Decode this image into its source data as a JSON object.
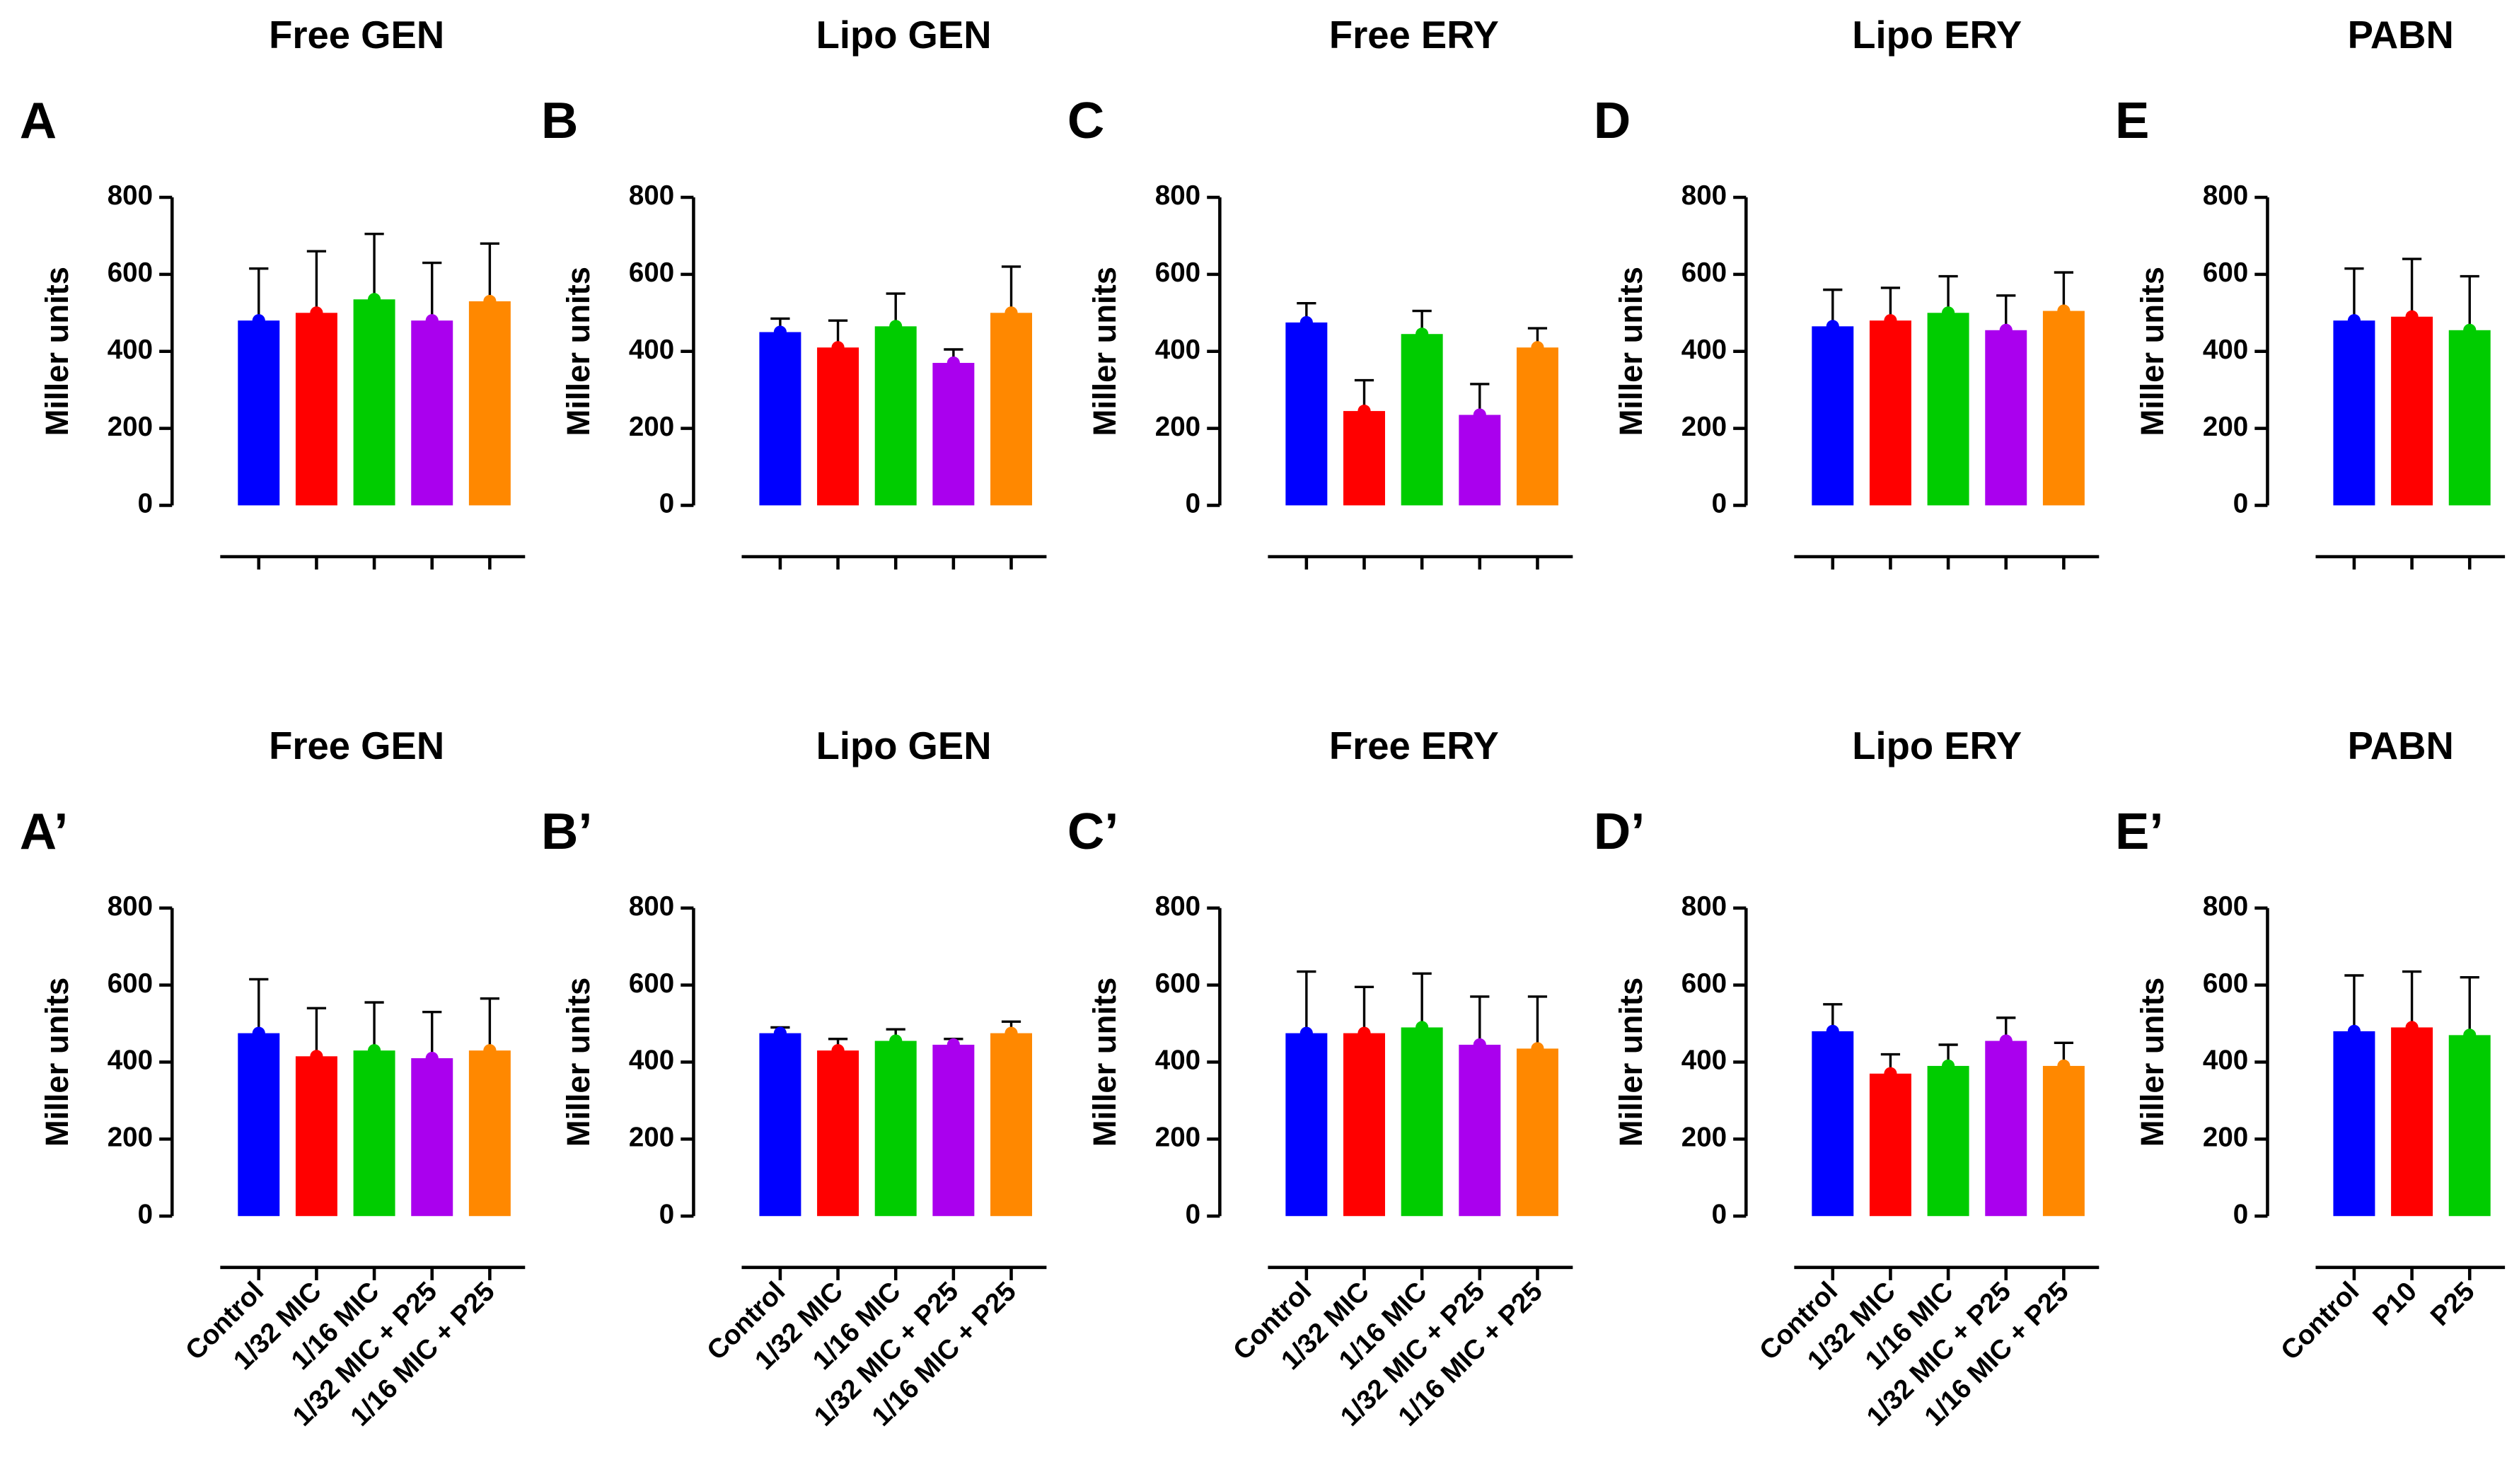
{
  "chart_data": [
    {
      "type": "bar",
      "title": "Free GEN",
      "label": "A",
      "ylabel": "Miller units",
      "categories": [
        null,
        null,
        null,
        null,
        null
      ],
      "values": [
        480,
        500,
        535,
        480,
        530
      ],
      "errors": [
        135,
        160,
        170,
        150,
        150
      ],
      "colors": [
        "#0000ff",
        "#ff0000",
        "#00cc00",
        "#aa00ee",
        "#ff8800"
      ],
      "ylim": [
        0,
        800
      ],
      "yticks": [
        0,
        200,
        400,
        600,
        800
      ]
    },
    {
      "type": "bar",
      "title": "Lipo GEN",
      "label": "B",
      "ylabel": "Miller units",
      "categories": [
        null,
        null,
        null,
        null,
        null
      ],
      "values": [
        450,
        410,
        465,
        370,
        500
      ],
      "errors": [
        35,
        70,
        85,
        35,
        120
      ],
      "colors": [
        "#0000ff",
        "#ff0000",
        "#00cc00",
        "#aa00ee",
        "#ff8800"
      ],
      "ylim": [
        0,
        800
      ],
      "yticks": [
        0,
        200,
        400,
        600,
        800
      ]
    },
    {
      "type": "bar",
      "title": "Free ERY",
      "label": "C",
      "ylabel": "Miller units",
      "categories": [
        null,
        null,
        null,
        null,
        null
      ],
      "values": [
        475,
        245,
        445,
        235,
        410
      ],
      "errors": [
        50,
        80,
        60,
        80,
        50
      ],
      "colors": [
        "#0000ff",
        "#ff0000",
        "#00cc00",
        "#aa00ee",
        "#ff8800"
      ],
      "ylim": [
        0,
        800
      ],
      "yticks": [
        0,
        200,
        400,
        600,
        800
      ]
    },
    {
      "type": "bar",
      "title": "Lipo ERY",
      "label": "D",
      "ylabel": "Miller units",
      "categories": [
        null,
        null,
        null,
        null,
        null
      ],
      "values": [
        465,
        480,
        500,
        455,
        505
      ],
      "errors": [
        95,
        85,
        95,
        90,
        100
      ],
      "colors": [
        "#0000ff",
        "#ff0000",
        "#00cc00",
        "#aa00ee",
        "#ff8800"
      ],
      "ylim": [
        0,
        800
      ],
      "yticks": [
        0,
        200,
        400,
        600,
        800
      ]
    },
    {
      "type": "bar",
      "title": "PABN",
      "label": "E",
      "ylabel": "Miller units",
      "categories": [
        null,
        null,
        null
      ],
      "values": [
        480,
        490,
        455
      ],
      "errors": [
        135,
        150,
        140
      ],
      "colors": [
        "#0000ff",
        "#ff0000",
        "#00cc00"
      ],
      "ylim": [
        0,
        800
      ],
      "yticks": [
        0,
        200,
        400,
        600,
        800
      ]
    },
    {
      "type": "bar",
      "title": "Free GEN",
      "label": "A’",
      "ylabel": "Miller units",
      "categories": [
        "Control",
        "1/32 MIC",
        "1/16 MIC",
        "1/32 MIC + P25",
        "1/16 MIC + P25"
      ],
      "values": [
        475,
        415,
        430,
        410,
        430
      ],
      "errors": [
        140,
        125,
        125,
        120,
        135
      ],
      "colors": [
        "#0000ff",
        "#ff0000",
        "#00cc00",
        "#aa00ee",
        "#ff8800"
      ],
      "ylim": [
        0,
        800
      ],
      "yticks": [
        0,
        200,
        400,
        600,
        800
      ]
    },
    {
      "type": "bar",
      "title": "Lipo GEN",
      "label": "B’",
      "ylabel": "Miller units",
      "categories": [
        "Control",
        "1/32 MIC",
        "1/16 MIC",
        "1/32 MIC + P25",
        "1/16 MIC + P25"
      ],
      "values": [
        475,
        430,
        455,
        445,
        475
      ],
      "errors": [
        15,
        30,
        30,
        15,
        30
      ],
      "colors": [
        "#0000ff",
        "#ff0000",
        "#00cc00",
        "#aa00ee",
        "#ff8800"
      ],
      "ylim": [
        0,
        800
      ],
      "yticks": [
        0,
        200,
        400,
        600,
        800
      ]
    },
    {
      "type": "bar",
      "title": "Free ERY",
      "label": "C’",
      "ylabel": "Miller units",
      "categories": [
        "Control",
        "1/32 MIC",
        "1/16 MIC",
        "1/32 MIC + P25",
        "1/16 MIC + P25"
      ],
      "values": [
        475,
        475,
        490,
        445,
        435
      ],
      "errors": [
        160,
        120,
        140,
        125,
        135
      ],
      "colors": [
        "#0000ff",
        "#ff0000",
        "#00cc00",
        "#aa00ee",
        "#ff8800"
      ],
      "ylim": [
        0,
        800
      ],
      "yticks": [
        0,
        200,
        400,
        600,
        800
      ]
    },
    {
      "type": "bar",
      "title": "Lipo ERY",
      "label": "D’",
      "ylabel": "Miller units",
      "categories": [
        "Control",
        "1/32 MIC",
        "1/16 MIC",
        "1/32 MIC + P25",
        "1/16 MIC + P25"
      ],
      "values": [
        480,
        370,
        390,
        455,
        390
      ],
      "errors": [
        70,
        50,
        55,
        60,
        60
      ],
      "colors": [
        "#0000ff",
        "#ff0000",
        "#00cc00",
        "#aa00ee",
        "#ff8800"
      ],
      "ylim": [
        0,
        800
      ],
      "yticks": [
        0,
        200,
        400,
        600,
        800
      ]
    },
    {
      "type": "bar",
      "title": "PABN",
      "label": "E’",
      "ylabel": "Miller units",
      "categories": [
        "Control",
        "P10",
        "P25"
      ],
      "values": [
        480,
        490,
        470
      ],
      "errors": [
        145,
        145,
        150
      ],
      "colors": [
        "#0000ff",
        "#ff0000",
        "#00cc00"
      ],
      "ylim": [
        0,
        800
      ],
      "yticks": [
        0,
        200,
        400,
        600,
        800
      ]
    }
  ]
}
